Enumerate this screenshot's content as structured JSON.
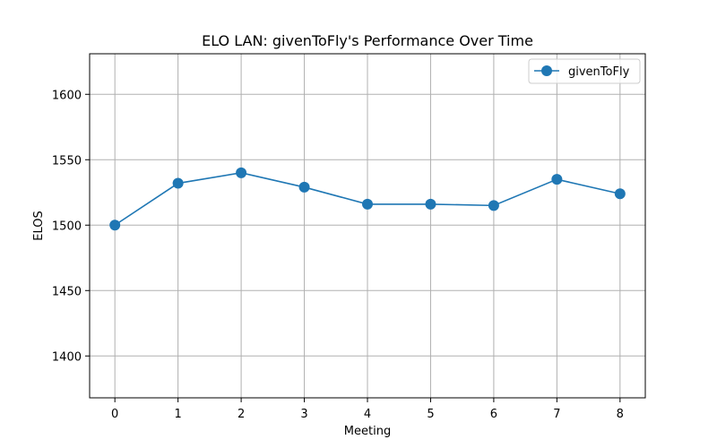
{
  "chart_data": {
    "type": "line",
    "title": "ELO LAN: givenToFly's Performance Over Time",
    "xlabel": "Meeting",
    "ylabel": "ELOS",
    "x": [
      0,
      1,
      2,
      3,
      4,
      5,
      6,
      7,
      8
    ],
    "xticks": [
      "0",
      "1",
      "2",
      "3",
      "4",
      "5",
      "6",
      "7",
      "8"
    ],
    "yticks": [
      "1400",
      "1450",
      "1500",
      "1550",
      "1600"
    ],
    "xlim": [
      -0.4,
      8.4
    ],
    "ylim": [
      1368,
      1631
    ],
    "grid": true,
    "legend": "top-right",
    "series": [
      {
        "name": "givenToFly",
        "color": "#1f77b4",
        "marker": "circle",
        "values": [
          1500,
          1532,
          1540,
          1529,
          1516,
          1516,
          1515,
          1535,
          1524
        ]
      }
    ]
  }
}
